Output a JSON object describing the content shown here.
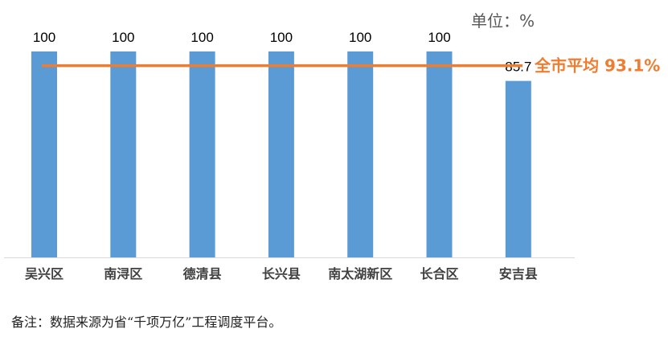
{
  "unit_label": "单位：%",
  "footnote": "备注：数据来源为省“千项万亿”工程调度平台。",
  "colors": {
    "bar": "#5b9bd5",
    "avg_line": "#ed7d31",
    "avg_text": "#ed7d31",
    "axis": "#d9d9d9"
  },
  "chart_data": {
    "type": "bar",
    "categories": [
      "吴兴区",
      "南浔区",
      "德清县",
      "长兴县",
      "南太湖新区",
      "长合区",
      "安吉县"
    ],
    "values": [
      100,
      100,
      100,
      100,
      100,
      100,
      85.7
    ],
    "value_labels": [
      "100",
      "100",
      "100",
      "100",
      "100",
      "100",
      "85.7"
    ],
    "ylim": [
      0,
      100
    ],
    "average": {
      "value": 93.1,
      "label": "全市平均 93.1%"
    },
    "grid": false,
    "title": "",
    "xlabel": "",
    "ylabel": ""
  }
}
